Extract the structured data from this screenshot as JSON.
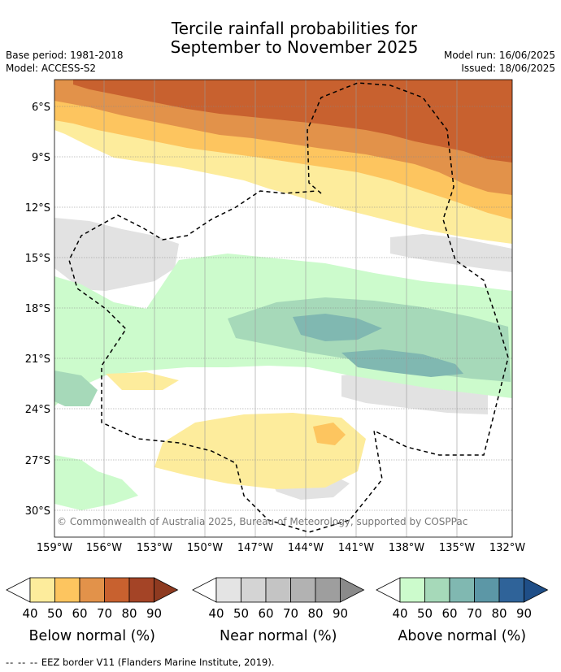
{
  "header": {
    "title_line1": "Tercile rainfall probabilities for",
    "title_line2": "September to November 2025",
    "base_period": "Base period: 1981-2018",
    "model": "Model: ACCESS-S2",
    "model_run": "Model run: 16/06/2025",
    "issued": "Issued: 18/06/2025"
  },
  "map": {
    "lat_labels": [
      "6°S",
      "9°S",
      "12°S",
      "15°S",
      "18°S",
      "21°S",
      "24°S",
      "27°S",
      "30°S"
    ],
    "lon_labels": [
      "159°W",
      "156°W",
      "153°W",
      "150°W",
      "147°W",
      "144°W",
      "141°W",
      "138°W",
      "135°W",
      "132°W"
    ],
    "copyright": "© Commonwealth of Australia 2025, Bureau of Meteorology, supported by COSPPac"
  },
  "colorbars": [
    {
      "title": "Below normal (%)",
      "ticks": [
        "40",
        "50",
        "60",
        "70",
        "80",
        "90"
      ],
      "colors": [
        "#ffffff",
        "#fdec9c",
        "#fdc55f",
        "#e2924a",
        "#c8612f",
        "#a44426",
        "#8e3a20"
      ]
    },
    {
      "title": "Near normal (%)",
      "ticks": [
        "40",
        "50",
        "60",
        "70",
        "80",
        "90"
      ],
      "colors": [
        "#ffffff",
        "#e4e4e4",
        "#d4d4d4",
        "#c4c4c4",
        "#b2b2b2",
        "#9e9e9e",
        "#8a8a8a"
      ]
    },
    {
      "title": "Above normal (%)",
      "ticks": [
        "40",
        "50",
        "60",
        "70",
        "80",
        "90"
      ],
      "colors": [
        "#ffffff",
        "#ccfbcc",
        "#a6d9b9",
        "#80b8b1",
        "#5c97a6",
        "#2f6399",
        "#1f4e87"
      ]
    }
  ],
  "footer": {
    "legend_dash": "-- -- --",
    "legend_text": "EEZ border V11 (Flanders Marine Institute, 2019)."
  }
}
